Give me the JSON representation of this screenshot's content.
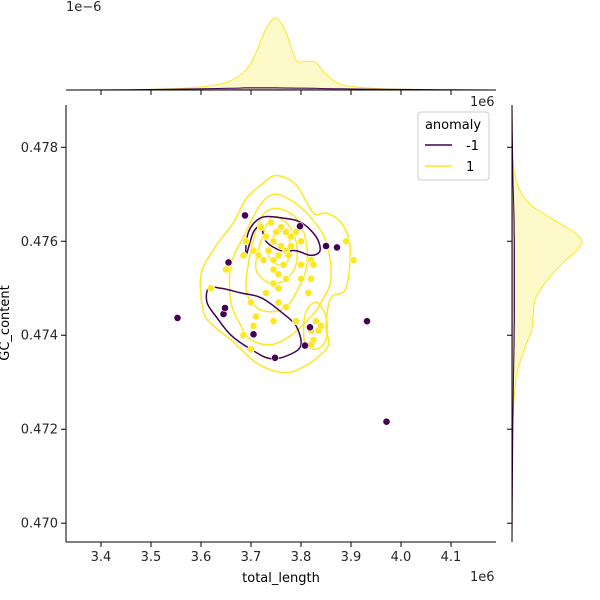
{
  "chart_data": {
    "type": "scatter",
    "subtype": "jointplot-kde",
    "xlabel": "total_length",
    "ylabel": "GC_content",
    "x_offset_label": "1e6",
    "y_offset_label": "1e6",
    "top_density_offset_label": "1e−6",
    "xlim": [
      3.33,
      4.19
    ],
    "ylim": [
      0.4696,
      0.4789
    ],
    "xticks": [
      "3.4",
      "3.5",
      "3.6",
      "3.7",
      "3.8",
      "3.9",
      "4.0",
      "4.1"
    ],
    "yticks": [
      "0.470",
      "0.472",
      "0.474",
      "0.476",
      "0.478"
    ],
    "xtick_values": [
      3.4,
      3.5,
      3.6,
      3.7,
      3.8,
      3.9,
      4.0,
      4.1
    ],
    "ytick_values": [
      0.47,
      0.472,
      0.474,
      0.476,
      0.478
    ],
    "grid": false,
    "legend": {
      "title": "anomaly",
      "placement": "top-right",
      "entries": [
        {
          "label": "-1",
          "color": "#440154"
        },
        {
          "label": "1",
          "color": "#fde725"
        }
      ]
    },
    "series": [
      {
        "name": "-1",
        "color": "#440154",
        "points": [
          [
            3.688,
            0.47655
          ],
          [
            3.655,
            0.47555
          ],
          [
            3.645,
            0.47445
          ],
          [
            3.648,
            0.47458
          ],
          [
            3.553,
            0.47437
          ],
          [
            3.705,
            0.47402
          ],
          [
            3.748,
            0.47352
          ],
          [
            3.872,
            0.47587
          ],
          [
            3.932,
            0.4743
          ],
          [
            3.971,
            0.47216
          ],
          [
            3.808,
            0.47378
          ],
          [
            3.818,
            0.47417
          ],
          [
            3.798,
            0.47632
          ],
          [
            3.85,
            0.4759
          ]
        ]
      },
      {
        "name": "1",
        "color": "#fde725",
        "points": [
          [
            3.72,
            0.4763
          ],
          [
            3.74,
            0.4764
          ],
          [
            3.75,
            0.4762
          ],
          [
            3.76,
            0.4763
          ],
          [
            3.77,
            0.4762
          ],
          [
            3.73,
            0.4761
          ],
          [
            3.745,
            0.476
          ],
          [
            3.78,
            0.4761
          ],
          [
            3.79,
            0.4762
          ],
          [
            3.76,
            0.4759
          ],
          [
            3.77,
            0.4758
          ],
          [
            3.775,
            0.4757
          ],
          [
            3.78,
            0.4759
          ],
          [
            3.735,
            0.4758
          ],
          [
            3.725,
            0.4756
          ],
          [
            3.745,
            0.4756
          ],
          [
            3.755,
            0.4757
          ],
          [
            3.765,
            0.4755
          ],
          [
            3.69,
            0.476
          ],
          [
            3.685,
            0.4757
          ],
          [
            3.705,
            0.4758
          ],
          [
            3.715,
            0.4757
          ],
          [
            3.745,
            0.4754
          ],
          [
            3.755,
            0.4753
          ],
          [
            3.77,
            0.4752
          ],
          [
            3.745,
            0.4751
          ],
          [
            3.755,
            0.475
          ],
          [
            3.8,
            0.4755
          ],
          [
            3.82,
            0.4756
          ],
          [
            3.825,
            0.4755
          ],
          [
            3.8,
            0.4752
          ],
          [
            3.82,
            0.4752
          ],
          [
            3.815,
            0.4749
          ],
          [
            3.7,
            0.4747
          ],
          [
            3.71,
            0.4744
          ],
          [
            3.705,
            0.4742
          ],
          [
            3.685,
            0.474
          ],
          [
            3.7,
            0.4737
          ],
          [
            3.73,
            0.4749
          ],
          [
            3.755,
            0.4747
          ],
          [
            3.77,
            0.4746
          ],
          [
            3.745,
            0.4743
          ],
          [
            3.79,
            0.4743
          ],
          [
            3.82,
            0.4741
          ],
          [
            3.83,
            0.4743
          ],
          [
            3.835,
            0.4741
          ],
          [
            3.84,
            0.4742
          ],
          [
            3.825,
            0.4739
          ],
          [
            3.82,
            0.4738
          ],
          [
            3.89,
            0.476
          ],
          [
            3.905,
            0.4756
          ],
          [
            3.65,
            0.4754
          ],
          [
            3.62,
            0.475
          ],
          [
            3.8,
            0.476
          ]
        ]
      }
    ],
    "top_density": {
      "x": [
        3.33,
        3.45,
        3.55,
        3.62,
        3.66,
        3.69,
        3.71,
        3.73,
        3.75,
        3.77,
        3.79,
        3.81,
        3.83,
        3.85,
        3.88,
        3.93,
        4.0,
        4.19
      ],
      "y1": [
        0,
        0.002,
        0.02,
        0.06,
        0.13,
        0.28,
        0.52,
        0.85,
        1.0,
        0.8,
        0.42,
        0.4,
        0.38,
        0.22,
        0.08,
        0.03,
        0.01,
        0
      ],
      "y_neg": [
        0,
        0.004,
        0.012,
        0.02,
        0.025,
        0.03,
        0.032,
        0.032,
        0.03,
        0.028,
        0.026,
        0.026,
        0.024,
        0.02,
        0.016,
        0.012,
        0.008,
        0
      ]
    },
    "right_density": {
      "y": [
        0.4696,
        0.472,
        0.473,
        0.4733,
        0.4738,
        0.4741,
        0.4744,
        0.4748,
        0.4752,
        0.4755,
        0.4758,
        0.476,
        0.4762,
        0.4765,
        0.4768,
        0.4772,
        0.4778,
        0.4789
      ],
      "x1": [
        0,
        0.01,
        0.05,
        0.09,
        0.2,
        0.28,
        0.3,
        0.34,
        0.52,
        0.7,
        0.92,
        1.0,
        0.88,
        0.55,
        0.25,
        0.08,
        0.01,
        0
      ],
      "x_neg": [
        0,
        0.012,
        0.02,
        0.024,
        0.03,
        0.032,
        0.034,
        0.034,
        0.034,
        0.034,
        0.034,
        0.034,
        0.032,
        0.03,
        0.024,
        0.016,
        0.008,
        0
      ]
    },
    "contours_neg": [
      [
        [
          3.69,
          0.4757
        ],
        [
          3.695,
          0.4762
        ],
        [
          3.72,
          0.4765
        ],
        [
          3.76,
          0.4765
        ],
        [
          3.8,
          0.4764
        ],
        [
          3.83,
          0.4761
        ],
        [
          3.838,
          0.4758
        ],
        [
          3.82,
          0.4757
        ],
        [
          3.79,
          0.4758
        ],
        [
          3.76,
          0.4758
        ],
        [
          3.73,
          0.476
        ],
        [
          3.72,
          0.4763
        ],
        [
          3.705,
          0.4762
        ]
      ],
      [
        [
          3.612,
          0.4747
        ],
        [
          3.63,
          0.4744
        ],
        [
          3.66,
          0.474
        ],
        [
          3.7,
          0.4737
        ],
        [
          3.74,
          0.4735
        ],
        [
          3.78,
          0.4736
        ],
        [
          3.8,
          0.4738
        ],
        [
          3.79,
          0.4742
        ],
        [
          3.76,
          0.4745
        ],
        [
          3.72,
          0.4748
        ],
        [
          3.68,
          0.4749
        ],
        [
          3.64,
          0.475
        ],
        [
          3.615,
          0.475
        ]
      ]
    ],
    "contours_pos": [
      [
        [
          3.605,
          0.4745
        ],
        [
          3.6,
          0.4753
        ],
        [
          3.63,
          0.4759
        ],
        [
          3.665,
          0.4764
        ],
        [
          3.69,
          0.4769
        ],
        [
          3.72,
          0.4772
        ],
        [
          3.75,
          0.4774
        ],
        [
          3.79,
          0.4772
        ],
        [
          3.825,
          0.4766
        ],
        [
          3.85,
          0.4766
        ],
        [
          3.88,
          0.4764
        ],
        [
          3.898,
          0.4759
        ],
        [
          3.89,
          0.475
        ],
        [
          3.86,
          0.4748
        ],
        [
          3.85,
          0.4742
        ],
        [
          3.855,
          0.4738
        ],
        [
          3.83,
          0.4735
        ],
        [
          3.8,
          0.4733
        ],
        [
          3.77,
          0.4732
        ],
        [
          3.73,
          0.4733
        ],
        [
          3.7,
          0.4735
        ],
        [
          3.66,
          0.4739
        ],
        [
          3.625,
          0.4742
        ]
      ],
      [
        [
          3.66,
          0.4747
        ],
        [
          3.66,
          0.4755
        ],
        [
          3.69,
          0.4762
        ],
        [
          3.72,
          0.4768
        ],
        [
          3.75,
          0.477
        ],
        [
          3.79,
          0.4768
        ],
        [
          3.82,
          0.4765
        ],
        [
          3.85,
          0.476
        ],
        [
          3.86,
          0.4752
        ],
        [
          3.84,
          0.4747
        ],
        [
          3.82,
          0.4744
        ],
        [
          3.78,
          0.474
        ],
        [
          3.74,
          0.4738
        ],
        [
          3.7,
          0.4739
        ],
        [
          3.68,
          0.4742
        ]
      ],
      [
        [
          3.69,
          0.475
        ],
        [
          3.7,
          0.4758
        ],
        [
          3.72,
          0.4765
        ],
        [
          3.75,
          0.4767
        ],
        [
          3.79,
          0.4765
        ],
        [
          3.81,
          0.476
        ],
        [
          3.81,
          0.4754
        ],
        [
          3.79,
          0.4749
        ],
        [
          3.77,
          0.4746
        ],
        [
          3.74,
          0.4745
        ],
        [
          3.71,
          0.4746
        ]
      ],
      [
        [
          3.71,
          0.4754
        ],
        [
          3.72,
          0.476
        ],
        [
          3.74,
          0.4765
        ],
        [
          3.77,
          0.4764
        ],
        [
          3.79,
          0.476
        ],
        [
          3.79,
          0.4755
        ],
        [
          3.77,
          0.4752
        ],
        [
          3.74,
          0.4751
        ]
      ],
      [
        [
          3.735,
          0.4757
        ],
        [
          3.745,
          0.4761
        ],
        [
          3.765,
          0.4762
        ],
        [
          3.78,
          0.4759
        ],
        [
          3.775,
          0.4756
        ],
        [
          3.755,
          0.4755
        ]
      ],
      [
        [
          3.805,
          0.4741
        ],
        [
          3.81,
          0.4745
        ],
        [
          3.83,
          0.4747
        ],
        [
          3.85,
          0.4744
        ],
        [
          3.85,
          0.4739
        ],
        [
          3.83,
          0.4737
        ],
        [
          3.81,
          0.4738
        ]
      ]
    ]
  }
}
